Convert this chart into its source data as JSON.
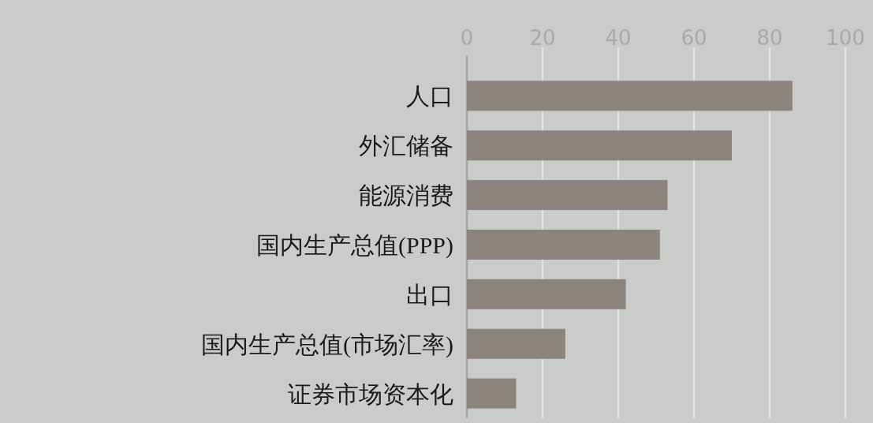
{
  "chart_data": {
    "type": "bar",
    "orientation": "horizontal",
    "categories": [
      "人口",
      "外汇储备",
      "能源消费",
      "国内生产总值(PPP)",
      "出口",
      "国内生产总值(市场汇率)",
      "证券市场资本化"
    ],
    "values": [
      86,
      70,
      53,
      51,
      42,
      26,
      13
    ],
    "color": "#8a847c",
    "xlim": [
      0,
      100
    ],
    "xticks": [
      0,
      20,
      40,
      60,
      80,
      100
    ],
    "grid": "x"
  }
}
